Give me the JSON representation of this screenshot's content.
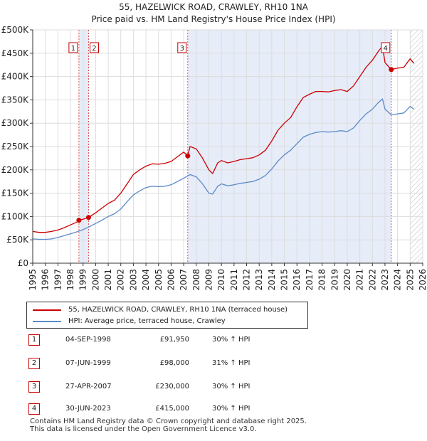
{
  "chart_data": {
    "type": "line",
    "title": "55, HAZELWICK ROAD, CRAWLEY, RH10 1NA",
    "subtitle": "Price paid vs. HM Land Registry's House Price Index (HPI)",
    "x_range": [
      1995,
      2026
    ],
    "ylim": [
      0,
      500000
    ],
    "y_ticks": [
      {
        "value": 0,
        "label": "£0"
      },
      {
        "value": 50000,
        "label": "£50K"
      },
      {
        "value": 100000,
        "label": "£100K"
      },
      {
        "value": 150000,
        "label": "£150K"
      },
      {
        "value": 200000,
        "label": "£200K"
      },
      {
        "value": 250000,
        "label": "£250K"
      },
      {
        "value": 300000,
        "label": "£300K"
      },
      {
        "value": 350000,
        "label": "£350K"
      },
      {
        "value": 400000,
        "label": "£400K"
      },
      {
        "value": 450000,
        "label": "£450K"
      },
      {
        "value": 500000,
        "label": "£500K"
      }
    ],
    "x_ticks": [
      "1995",
      "1996",
      "1997",
      "1998",
      "1999",
      "2000",
      "2001",
      "2002",
      "2003",
      "2004",
      "2005",
      "2006",
      "2007",
      "2008",
      "2009",
      "2010",
      "2011",
      "2012",
      "2013",
      "2014",
      "2015",
      "2016",
      "2017",
      "2018",
      "2019",
      "2020",
      "2021",
      "2022",
      "2023",
      "2024",
      "2025",
      "2026"
    ],
    "grid": true,
    "series": [
      {
        "name": "55, HAZELWICK ROAD, CRAWLEY, RH10 1NA (terraced house)",
        "color": "#cc0000",
        "x": [
          1995.0,
          1995.5,
          1996.0,
          1996.5,
          1997.0,
          1997.5,
          1998.0,
          1998.5,
          1998.67,
          1999.0,
          1999.44,
          2000.0,
          2000.5,
          2001.0,
          2001.5,
          2002.0,
          2002.5,
          2003.0,
          2003.5,
          2004.0,
          2004.5,
          2005.0,
          2005.5,
          2006.0,
          2006.5,
          2007.0,
          2007.32,
          2007.5,
          2008.0,
          2008.5,
          2009.0,
          2009.3,
          2009.7,
          2010.0,
          2010.5,
          2011.0,
          2011.5,
          2012.0,
          2012.5,
          2013.0,
          2013.5,
          2014.0,
          2014.5,
          2015.0,
          2015.5,
          2016.0,
          2016.5,
          2017.0,
          2017.5,
          2018.0,
          2018.5,
          2019.0,
          2019.5,
          2020.0,
          2020.5,
          2021.0,
          2021.5,
          2022.0,
          2022.5,
          2022.8,
          2023.0,
          2023.5,
          2024.0,
          2024.5,
          2025.0,
          2025.3
        ],
        "values": [
          68000,
          66000,
          66000,
          68000,
          71000,
          76000,
          82000,
          88000,
          91950,
          94000,
          98000,
          108000,
          118000,
          128000,
          135000,
          150000,
          170000,
          190000,
          200000,
          208000,
          213000,
          212000,
          214000,
          218000,
          228000,
          238000,
          230000,
          250000,
          245000,
          225000,
          200000,
          192000,
          215000,
          220000,
          215000,
          218000,
          222000,
          224000,
          226000,
          232000,
          242000,
          262000,
          285000,
          300000,
          312000,
          335000,
          355000,
          362000,
          368000,
          368000,
          367000,
          370000,
          372000,
          368000,
          380000,
          400000,
          420000,
          435000,
          455000,
          465000,
          430000,
          415000,
          418000,
          420000,
          438000,
          428000
        ]
      },
      {
        "name": "HPI: Average price, terraced house, Crawley",
        "color": "#5b8ac8",
        "x": [
          1995.0,
          1995.5,
          1996.0,
          1996.5,
          1997.0,
          1997.5,
          1998.0,
          1998.5,
          1999.0,
          1999.5,
          2000.0,
          2000.5,
          2001.0,
          2001.5,
          2002.0,
          2002.5,
          2003.0,
          2003.5,
          2004.0,
          2004.5,
          2005.0,
          2005.5,
          2006.0,
          2006.5,
          2007.0,
          2007.5,
          2008.0,
          2008.5,
          2009.0,
          2009.3,
          2009.7,
          2010.0,
          2010.5,
          2011.0,
          2011.5,
          2012.0,
          2012.5,
          2013.0,
          2013.5,
          2014.0,
          2014.5,
          2015.0,
          2015.5,
          2016.0,
          2016.5,
          2017.0,
          2017.5,
          2018.0,
          2018.5,
          2019.0,
          2019.5,
          2020.0,
          2020.5,
          2021.0,
          2021.5,
          2022.0,
          2022.5,
          2022.8,
          2023.0,
          2023.5,
          2024.0,
          2024.5,
          2025.0,
          2025.3
        ],
        "values": [
          52000,
          51000,
          51000,
          52000,
          55000,
          59000,
          63000,
          67000,
          72000,
          78000,
          85000,
          92000,
          100000,
          106000,
          116000,
          132000,
          146000,
          155000,
          162000,
          165000,
          164000,
          165000,
          168000,
          175000,
          182000,
          190000,
          185000,
          170000,
          150000,
          148000,
          165000,
          170000,
          166000,
          168000,
          171000,
          173000,
          175000,
          180000,
          188000,
          202000,
          219000,
          232000,
          242000,
          256000,
          270000,
          276000,
          280000,
          282000,
          281000,
          282000,
          284000,
          282000,
          290000,
          306000,
          320000,
          330000,
          345000,
          352000,
          330000,
          318000,
          320000,
          322000,
          336000,
          330000
        ]
      }
    ],
    "annotations": [
      {
        "label": "1",
        "x": 1998.67,
        "y": 91950
      },
      {
        "label": "2",
        "x": 1999.44,
        "y": 98000
      },
      {
        "label": "3",
        "x": 2007.32,
        "y": 230000
      },
      {
        "label": "4",
        "x": 2023.5,
        "y": 415000
      }
    ],
    "shaded_ranges": [
      [
        1998.67,
        1999.44
      ],
      [
        2007.32,
        2023.5
      ]
    ],
    "hatched_from": 2025.0
  },
  "legend": {
    "items": [
      {
        "label": "55, HAZELWICK ROAD, CRAWLEY, RH10 1NA (terraced house)",
        "color": "#cc0000"
      },
      {
        "label": "HPI: Average price, terraced house, Crawley",
        "color": "#5b8ac8"
      }
    ]
  },
  "sales": [
    {
      "num": "1",
      "date": "04-SEP-1998",
      "price": "£91,950",
      "hpi": "30% ↑ HPI"
    },
    {
      "num": "2",
      "date": "07-JUN-1999",
      "price": "£98,000",
      "hpi": "31% ↑ HPI"
    },
    {
      "num": "3",
      "date": "27-APR-2007",
      "price": "£230,000",
      "hpi": "30% ↑ HPI"
    },
    {
      "num": "4",
      "date": "30-JUN-2023",
      "price": "£415,000",
      "hpi": "30% ↑ HPI"
    }
  ],
  "footer": {
    "line1": "Contains HM Land Registry data © Crown copyright and database right 2025.",
    "line2": "This data is licensed under the Open Government Licence v3.0."
  }
}
